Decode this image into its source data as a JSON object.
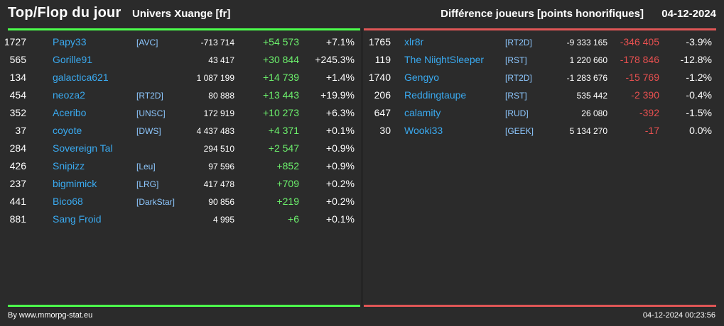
{
  "header": {
    "title": "Top/Flop du jour",
    "universe": "Univers Xuange [fr]",
    "metric": "Différence joueurs [points honorifiques]",
    "date": "04-12-2024"
  },
  "colors": {
    "accent_top": "#4cff4c",
    "accent_flop": "#e05656",
    "name": "#3aaaf0",
    "positive": "#6cf06c",
    "negative": "#e85050"
  },
  "top": [
    {
      "rank": "1727",
      "name": "Papy33",
      "ally": "[AVC]",
      "points": "-713 714",
      "diff": "+54 573",
      "pct": "+7.1%"
    },
    {
      "rank": "565",
      "name": "Gorille91",
      "ally": "",
      "points": "43 417",
      "diff": "+30 844",
      "pct": "+245.3%"
    },
    {
      "rank": "134",
      "name": "galactica621",
      "ally": "",
      "points": "1 087 199",
      "diff": "+14 739",
      "pct": "+1.4%"
    },
    {
      "rank": "454",
      "name": "neoza2",
      "ally": "[RT2D]",
      "points": "80 888",
      "diff": "+13 443",
      "pct": "+19.9%"
    },
    {
      "rank": "352",
      "name": "Aceribo",
      "ally": "[UNSC]",
      "points": "172 919",
      "diff": "+10 273",
      "pct": "+6.3%"
    },
    {
      "rank": "37",
      "name": "coyote",
      "ally": "[DWS]",
      "points": "4 437 483",
      "diff": "+4 371",
      "pct": "+0.1%"
    },
    {
      "rank": "284",
      "name": "Sovereign Tal",
      "ally": "",
      "points": "294 510",
      "diff": "+2 547",
      "pct": "+0.9%"
    },
    {
      "rank": "426",
      "name": "Snipizz",
      "ally": "[Leu]",
      "points": "97 596",
      "diff": "+852",
      "pct": "+0.9%"
    },
    {
      "rank": "237",
      "name": "bigmimick",
      "ally": "[LRG]",
      "points": "417 478",
      "diff": "+709",
      "pct": "+0.2%"
    },
    {
      "rank": "441",
      "name": "Bico68",
      "ally": "[DarkStar]",
      "points": "90 856",
      "diff": "+219",
      "pct": "+0.2%"
    },
    {
      "rank": "881",
      "name": "Sang Froid",
      "ally": "",
      "points": "4 995",
      "diff": "+6",
      "pct": "+0.1%"
    }
  ],
  "flop": [
    {
      "rank": "1765",
      "name": "xlr8r",
      "ally": "[RT2D]",
      "points": "-9 333 165",
      "diff": "-346 405",
      "pct": "-3.9%"
    },
    {
      "rank": "119",
      "name": "The NiightSleeper",
      "ally": "[RST]",
      "points": "1 220 660",
      "diff": "-178 846",
      "pct": "-12.8%"
    },
    {
      "rank": "1740",
      "name": "Gengyo",
      "ally": "[RT2D]",
      "points": "-1 283 676",
      "diff": "-15 769",
      "pct": "-1.2%"
    },
    {
      "rank": "206",
      "name": "Reddingtaupe",
      "ally": "[RST]",
      "points": "535 442",
      "diff": "-2 390",
      "pct": "-0.4%"
    },
    {
      "rank": "647",
      "name": "calamity",
      "ally": "[RUD]",
      "points": "26 080",
      "diff": "-392",
      "pct": "-1.5%"
    },
    {
      "rank": "30",
      "name": "Wooki33",
      "ally": "[GEEK]",
      "points": "5 134 270",
      "diff": "-17",
      "pct": "0.0%"
    }
  ],
  "footer": {
    "credit": "By www.mmorpg-stat.eu",
    "timestamp": "04-12-2024 00:23:56"
  }
}
